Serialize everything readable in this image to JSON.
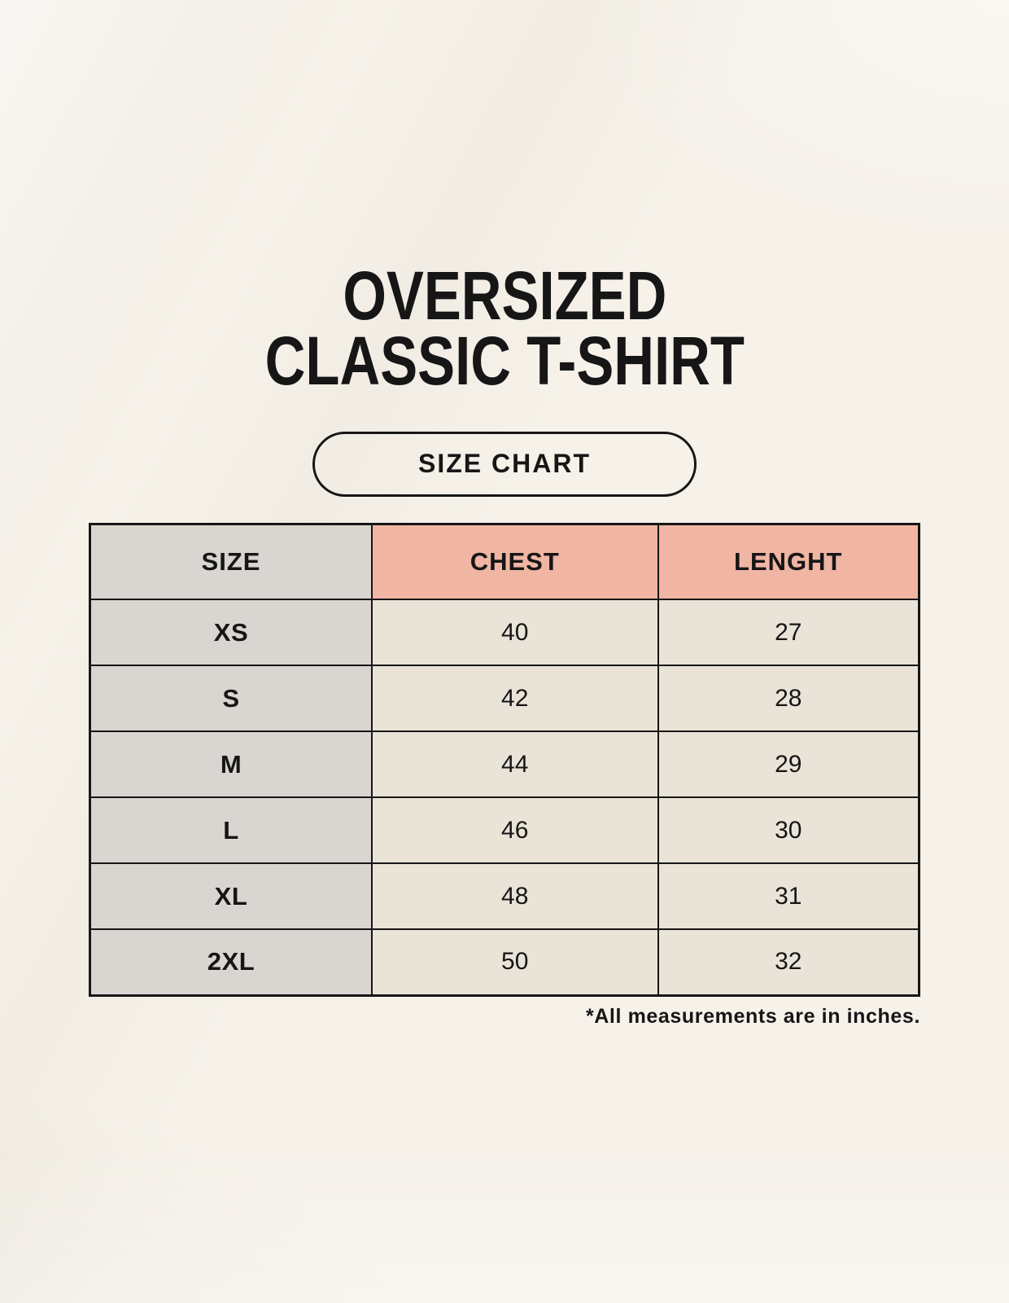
{
  "header": {
    "title_line1": "OVERSIZED",
    "title_line2": "CLASSIC T-SHIRT",
    "size_chart_button": "SIZE CHART"
  },
  "chart_data": {
    "type": "table",
    "columns": [
      "SIZE",
      "CHEST",
      "LENGHT"
    ],
    "rows": [
      {
        "size": "XS",
        "chest": 40,
        "length": 27
      },
      {
        "size": "S",
        "chest": 42,
        "length": 28
      },
      {
        "size": "M",
        "chest": 44,
        "length": 29
      },
      {
        "size": "L",
        "chest": 46,
        "length": 30
      },
      {
        "size": "XL",
        "chest": 48,
        "length": 31
      },
      {
        "size": "2XL",
        "chest": 50,
        "length": 32
      }
    ],
    "footnote": "*All measurements are in inches.",
    "units": "inches"
  },
  "colors": {
    "bg": "#f6f2ea",
    "border": "#161616",
    "text": "#161616",
    "size_col_bg": "#d9d5d0",
    "accent_bg": "#f0b5a3",
    "value_cell_bg": "#eae3d7"
  }
}
